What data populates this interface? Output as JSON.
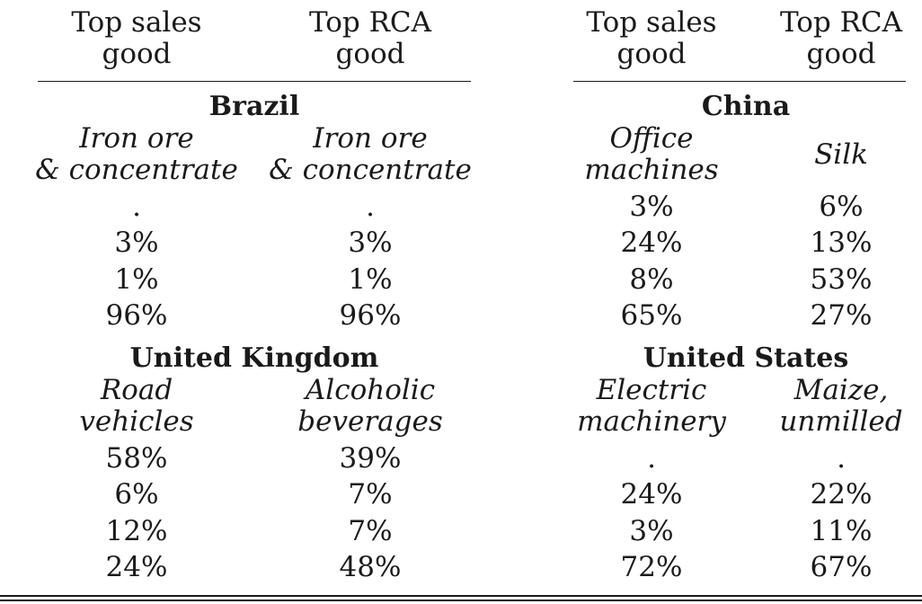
{
  "columns": {
    "left": [
      {
        "line1": "Top sales",
        "line2": "good"
      },
      {
        "line1": "Top RCA",
        "line2": "good"
      }
    ],
    "right": [
      {
        "line1": "Top sales",
        "line2": "good"
      },
      {
        "line1": "Top RCA",
        "line2": "good"
      }
    ]
  },
  "panels": [
    {
      "country": "Brazil",
      "sales_good": {
        "line1": "Iron ore",
        "line2": "& concentrate"
      },
      "rca_good": {
        "line1": "Iron ore",
        "line2": "& concentrate"
      },
      "sales_values": [
        ".",
        "3%",
        "1%",
        "96%"
      ],
      "rca_values": [
        ".",
        "3%",
        "1%",
        "96%"
      ]
    },
    {
      "country": "China",
      "sales_good": {
        "line1": "Office",
        "line2": "machines"
      },
      "rca_good": {
        "line1": "Silk",
        "line2": ""
      },
      "sales_values": [
        "3%",
        "24%",
        "8%",
        "65%"
      ],
      "rca_values": [
        "6%",
        "13%",
        "53%",
        "27%"
      ]
    },
    {
      "country": "United Kingdom",
      "sales_good": {
        "line1": "Road",
        "line2": "vehicles"
      },
      "rca_good": {
        "line1": "Alcoholic",
        "line2": "beverages"
      },
      "sales_values": [
        "58%",
        "6%",
        "12%",
        "24%"
      ],
      "rca_values": [
        "39%",
        "7%",
        "7%",
        "48%"
      ]
    },
    {
      "country": "United States",
      "sales_good": {
        "line1": "Electric",
        "line2": "machinery"
      },
      "rca_good": {
        "line1": "Maize,",
        "line2": "unmilled"
      },
      "sales_values": [
        ".",
        "24%",
        "3%",
        "72%"
      ],
      "rca_values": [
        ".",
        "22%",
        "11%",
        "67%"
      ]
    }
  ]
}
